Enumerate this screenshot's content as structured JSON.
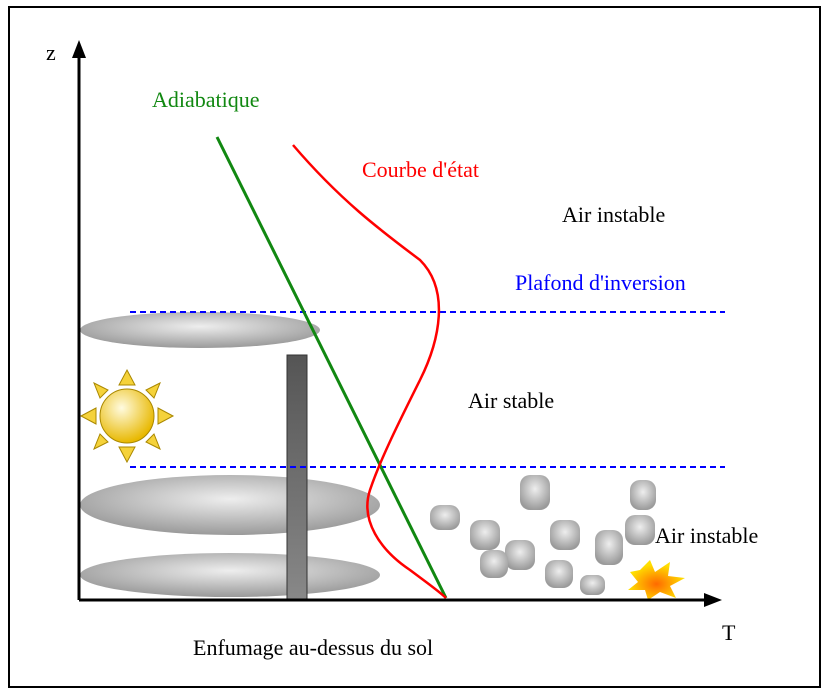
{
  "axes": {
    "y_label": "z",
    "x_label": "T"
  },
  "labels": {
    "adiabatic": "Adiabatique",
    "state_curve": "Courbe d'état",
    "unstable_top": "Air instable",
    "inversion": "Plafond d'inversion",
    "stable": "Air stable",
    "unstable_bottom": "Air instable"
  },
  "caption": "Enfumage au-dessus du sol"
}
